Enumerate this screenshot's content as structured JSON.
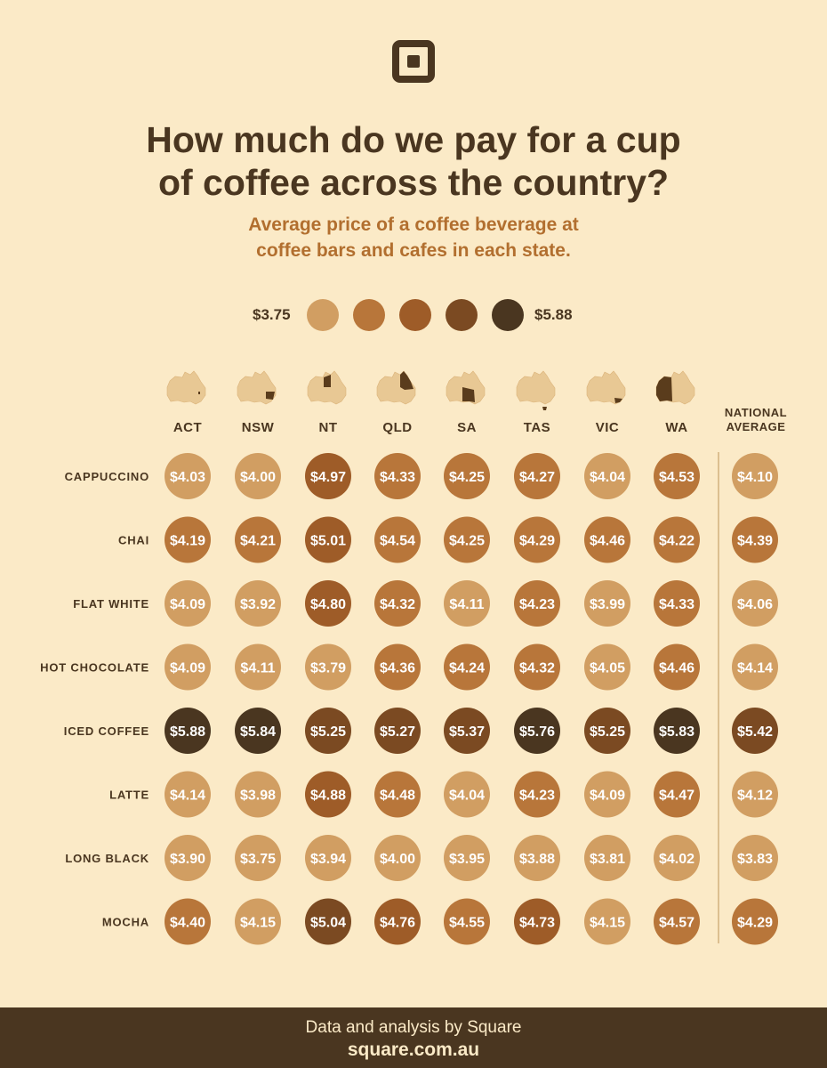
{
  "logo": {
    "icon": "square-logo-icon"
  },
  "header": {
    "title": "How much do we pay for a cup\nof coffee across the country?",
    "subtitle": "Average price of a coffee beverage at\ncoffee bars and cafes in each state."
  },
  "legend": {
    "min_label": "$3.75",
    "max_label": "$5.88",
    "colors": [
      "#d19e62",
      "#b8763a",
      "#9e5c28",
      "#7b4a22",
      "#4a3620"
    ]
  },
  "chart_data": {
    "type": "table",
    "title": "How much do we pay for a cup of coffee across the country?",
    "subtitle": "Average price of a coffee beverage at coffee bars and cafes in each state.",
    "columns": [
      "ACT",
      "NSW",
      "NT",
      "QLD",
      "SA",
      "TAS",
      "VIC",
      "WA"
    ],
    "summary_column": [
      "NATIONAL",
      "AVERAGE"
    ],
    "rows": [
      "CAPPUCCINO",
      "CHAI",
      "FLAT WHITE",
      "HOT CHOCOLATE",
      "ICED COFFEE",
      "LATTE",
      "LONG BLACK",
      "MOCHA"
    ],
    "values": [
      [
        4.03,
        4.0,
        4.97,
        4.33,
        4.25,
        4.27,
        4.04,
        4.53
      ],
      [
        4.19,
        4.21,
        5.01,
        4.54,
        4.25,
        4.29,
        4.46,
        4.22
      ],
      [
        4.09,
        3.92,
        4.8,
        4.32,
        4.11,
        4.23,
        3.99,
        4.33
      ],
      [
        4.09,
        4.11,
        3.79,
        4.36,
        4.24,
        4.32,
        4.05,
        4.46
      ],
      [
        5.88,
        5.84,
        5.25,
        5.27,
        5.37,
        5.76,
        5.25,
        5.83
      ],
      [
        4.14,
        3.98,
        4.88,
        4.48,
        4.04,
        4.23,
        4.09,
        4.47
      ],
      [
        3.9,
        3.75,
        3.94,
        4.0,
        3.95,
        3.88,
        3.81,
        4.02
      ],
      [
        4.4,
        4.15,
        5.04,
        4.76,
        4.55,
        4.73,
        4.15,
        4.57
      ]
    ],
    "national_average": [
      4.1,
      4.39,
      4.06,
      4.14,
      5.42,
      4.12,
      3.83,
      4.29
    ],
    "scale": {
      "min": 3.75,
      "max": 5.88
    }
  },
  "footer": {
    "credit": "Data and analysis by Square",
    "url": "square.com.au"
  }
}
